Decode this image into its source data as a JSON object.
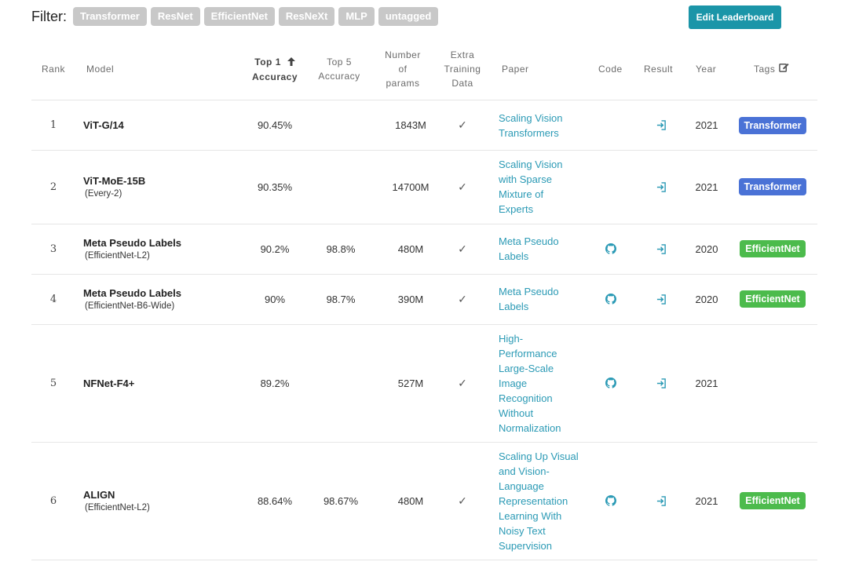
{
  "filter": {
    "label": "Filter:",
    "chips": [
      "Transformer",
      "ResNet",
      "EfficientNet",
      "ResNeXt",
      "MLP",
      "untagged"
    ]
  },
  "edit_button_label": "Edit Leaderboard",
  "columns": {
    "rank": "Rank",
    "model": "Model",
    "top1_line1": "Top 1",
    "top1_line2": "Accuracy",
    "top5_line1": "Top 5",
    "top5_line2": "Accuracy",
    "params_line1": "Number",
    "params_line2": "of",
    "params_line3": "params",
    "extra_line1": "Extra",
    "extra_line2": "Training",
    "extra_line3": "Data",
    "paper": "Paper",
    "code": "Code",
    "result": "Result",
    "year": "Year",
    "tags": "Tags"
  },
  "colors": {
    "transformer": "#4a72d6",
    "efficientnet": "#4cbb4c",
    "link": "#2b9ab5",
    "edit_button": "#1b95a8",
    "chip": "#c8c8c8"
  },
  "rows": [
    {
      "rank": "1",
      "model": "ViT-G/14",
      "sub": "",
      "top1": "90.45%",
      "top5": "",
      "params": "1843M",
      "extra": "✓",
      "paper": [
        "Scaling Vision",
        "Transformers"
      ],
      "code": false,
      "year": "2021",
      "tag": "Transformer"
    },
    {
      "rank": "2",
      "model": "ViT-MoE-15B",
      "sub": "(Every-2)",
      "top1": "90.35%",
      "top5": "",
      "params": "14700M",
      "extra": "✓",
      "paper": [
        "Scaling Vision",
        "with Sparse",
        "Mixture of",
        "Experts"
      ],
      "code": false,
      "year": "2021",
      "tag": "Transformer"
    },
    {
      "rank": "3",
      "model": "Meta Pseudo Labels",
      "sub": "(EfficientNet-L2)",
      "top1": "90.2%",
      "top5": "98.8%",
      "params": "480M",
      "extra": "✓",
      "paper": [
        "Meta Pseudo",
        "Labels"
      ],
      "code": true,
      "year": "2020",
      "tag": "EfficientNet"
    },
    {
      "rank": "4",
      "model": "Meta Pseudo Labels",
      "sub": "(EfficientNet-B6-Wide)",
      "top1": "90%",
      "top5": "98.7%",
      "params": "390M",
      "extra": "✓",
      "paper": [
        "Meta Pseudo",
        "Labels"
      ],
      "code": true,
      "year": "2020",
      "tag": "EfficientNet"
    },
    {
      "rank": "5",
      "model": "NFNet-F4+",
      "sub": "",
      "top1": "89.2%",
      "top5": "",
      "params": "527M",
      "extra": "✓",
      "paper": [
        "High-",
        "Performance",
        "Large-Scale",
        "Image",
        "Recognition",
        "Without",
        "Normalization"
      ],
      "code": true,
      "year": "2021",
      "tag": ""
    },
    {
      "rank": "6",
      "model": "ALIGN",
      "sub": "(EfficientNet-L2)",
      "top1": "88.64%",
      "top5": "98.67%",
      "params": "480M",
      "extra": "✓",
      "paper": [
        "Scaling Up Visual",
        "and Vision-",
        "Language",
        "Representation",
        "Learning With",
        "Noisy Text",
        "Supervision"
      ],
      "code": true,
      "year": "2021",
      "tag": "EfficientNet"
    }
  ]
}
